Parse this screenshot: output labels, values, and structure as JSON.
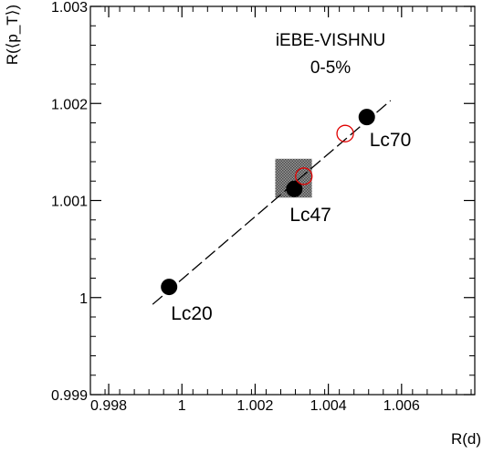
{
  "chart_data": {
    "type": "scatter",
    "title": "",
    "xlabel": "R(d)",
    "ylabel": "R(⟨p_T⟩)",
    "xlim": [
      0.9975,
      1.008
    ],
    "ylim": [
      0.999,
      1.003
    ],
    "xticks": [
      {
        "value": 0.998,
        "label": "0.998"
      },
      {
        "value": 1.0,
        "label": "1"
      },
      {
        "value": 1.002,
        "label": "1.002"
      },
      {
        "value": 1.004,
        "label": "1.004"
      },
      {
        "value": 1.006,
        "label": "1.006"
      }
    ],
    "yticks": [
      {
        "value": 0.999,
        "label": "0.999"
      },
      {
        "value": 1.0,
        "label": "1"
      },
      {
        "value": 1.001,
        "label": "1.001"
      },
      {
        "value": 1.002,
        "label": "1.002"
      },
      {
        "value": 1.003,
        "label": "1.003"
      }
    ],
    "annotations": [
      "iEBE-VISHNU",
      "0-5%"
    ],
    "series": [
      {
        "marker": "filled-circle",
        "color": "#000000",
        "points": [
          {
            "x": 0.99965,
            "y": 1.00011,
            "label": "Lc20"
          },
          {
            "x": 1.00307,
            "y": 1.00112,
            "label": "Lc47"
          },
          {
            "x": 1.00505,
            "y": 1.00186,
            "label": "Lc70"
          }
        ]
      },
      {
        "marker": "open-circle",
        "color": "#e00000",
        "points": [
          {
            "x": 1.00333,
            "y": 1.00125
          },
          {
            "x": 1.00446,
            "y": 1.00169
          }
        ]
      }
    ],
    "fit_line": {
      "style": "dashed",
      "x": [
        0.9992,
        1.0057
      ],
      "y": [
        0.99993,
        1.00203
      ]
    },
    "uncertainty_box": {
      "x": [
        1.00255,
        1.00355
      ],
      "y": [
        1.00103,
        1.00143
      ],
      "fill": "hatched-gray"
    }
  }
}
